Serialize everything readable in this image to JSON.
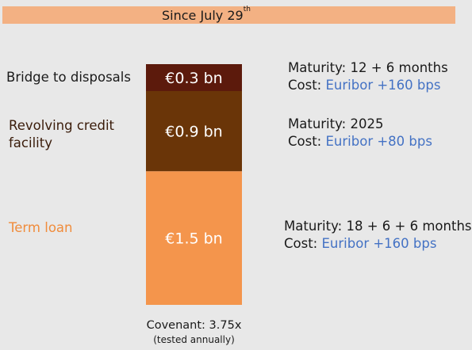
{
  "header": {
    "title": "Since July 29",
    "superscript": "th"
  },
  "chart_data": {
    "type": "bar",
    "stacked": true,
    "unit": "€ bn",
    "segments": [
      {
        "name": "Bridge to disposals",
        "value": 0.3,
        "label": "€0.3 bn",
        "color": "#5c1a0c",
        "text_color": "#1a1a1a",
        "maturity_label": "Maturity: ",
        "maturity": "12 + 6 months",
        "cost_label": "Cost: ",
        "cost": "Euribor +160 bps"
      },
      {
        "name": "Revolving credit facility",
        "name_lines": [
          "Revolving credit",
          "facility"
        ],
        "value": 0.9,
        "label": "€0.9 bn",
        "color": "#6a3508",
        "text_color": "#3a1c0a",
        "maturity_label": "Maturity: ",
        "maturity": "2025",
        "cost_label": "Cost: ",
        "cost": "Euribor +80 bps"
      },
      {
        "name": "Term loan",
        "value": 1.5,
        "label": "€1.5 bn",
        "color": "#f4954c",
        "text_color": "#f08c3c",
        "maturity_label": "Maturity: ",
        "maturity": "18 + 6 + 6 months",
        "cost_label": "Cost: ",
        "cost": "Euribor +160 bps"
      }
    ]
  },
  "footnote": {
    "covenant": "Covenant: 3.75x",
    "note": "(tested annually)"
  }
}
